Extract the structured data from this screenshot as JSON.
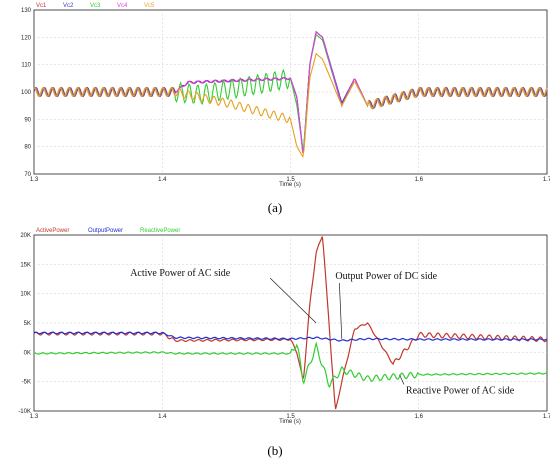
{
  "charts": [
    {
      "id": "a",
      "type": "line",
      "caption": "(a)",
      "xlabel": "Time (s)",
      "xlim": [
        1.3,
        1.7
      ],
      "ylim": [
        70,
        130
      ],
      "xticks": [
        "1.3",
        "1.4",
        "1.5",
        "1.6",
        "1.7"
      ],
      "yticks": [
        "70",
        "80",
        "90",
        "100",
        "110",
        "120",
        "130"
      ],
      "grid": true,
      "legend_position": "top-left",
      "series": [
        {
          "name": "Vc1",
          "color": "#d9262a"
        },
        {
          "name": "Vc2",
          "color": "#3b3bcc"
        },
        {
          "name": "Vc3",
          "color": "#33cc33"
        },
        {
          "name": "Vc4",
          "color": "#e040e0"
        },
        {
          "name": "Vc5",
          "color": "#e8a020"
        }
      ]
    },
    {
      "id": "b",
      "type": "line",
      "caption": "(b)",
      "xlabel": "Time (s)",
      "xlim": [
        1.3,
        1.7
      ],
      "ylim": [
        -10000,
        20000
      ],
      "xticks": [
        "1.3",
        "1.4",
        "1.5",
        "1.6",
        "1.7"
      ],
      "yticks": [
        "-10K",
        "-5K",
        "0K",
        "5K",
        "10K",
        "15K",
        "20K"
      ],
      "grid": true,
      "legend_position": "top-left",
      "series": [
        {
          "name": "ActivePower",
          "color": "#c0392b"
        },
        {
          "name": "OutputPower",
          "color": "#2030d0"
        },
        {
          "name": "ReactivePower",
          "color": "#33cc33"
        }
      ],
      "annotations": [
        {
          "text": "Active Power of AC side",
          "x": 1.375,
          "y": 13000,
          "target_x": 1.52,
          "target_y": 5000
        },
        {
          "text": "Output Power of DC side",
          "x": 1.535,
          "y": 12500,
          "target_x": 1.54,
          "target_y": 2300
        },
        {
          "text": "Reactive Power of AC side",
          "x": 1.59,
          "y": -7000,
          "target_x": 1.585,
          "target_y": -3800
        }
      ]
    }
  ],
  "chart_data": [
    {
      "type": "line",
      "title": "",
      "xlabel": "Time (s)",
      "ylabel": "",
      "xlim": [
        1.3,
        1.7
      ],
      "ylim": [
        70,
        130
      ],
      "series": [
        {
          "name": "Vc1",
          "x": [
            1.3,
            1.41,
            1.42,
            1.5,
            1.505,
            1.51,
            1.515,
            1.52,
            1.525,
            1.54,
            1.55,
            1.56,
            1.6,
            1.7
          ],
          "y": [
            100,
            100,
            103.5,
            105,
            98,
            76,
            110,
            122,
            120,
            95,
            105,
            95,
            100,
            100
          ]
        },
        {
          "name": "Vc2",
          "x": [
            1.3,
            1.41,
            1.42,
            1.5,
            1.505,
            1.51,
            1.515,
            1.52,
            1.525,
            1.54,
            1.55,
            1.56,
            1.6,
            1.7
          ],
          "y": [
            100,
            100,
            103.5,
            105,
            98,
            77,
            110,
            122,
            120,
            96,
            105,
            95,
            100,
            100
          ]
        },
        {
          "name": "Vc3",
          "x": [
            1.3,
            1.41,
            1.43,
            1.5,
            1.505,
            1.51,
            1.515,
            1.52,
            1.525,
            1.54,
            1.55,
            1.56,
            1.6,
            1.7
          ],
          "y": [
            100,
            100,
            99,
            105,
            95,
            78,
            110,
            121,
            119,
            95,
            104,
            95,
            100,
            100
          ]
        },
        {
          "name": "Vc4",
          "x": [
            1.3,
            1.41,
            1.42,
            1.5,
            1.505,
            1.51,
            1.515,
            1.52,
            1.525,
            1.54,
            1.55,
            1.56,
            1.6,
            1.7
          ],
          "y": [
            100,
            100,
            103.5,
            105,
            98,
            76,
            110,
            122,
            120,
            95,
            105,
            95,
            100,
            100
          ]
        },
        {
          "name": "Vc5",
          "x": [
            1.3,
            1.41,
            1.45,
            1.5,
            1.505,
            1.51,
            1.515,
            1.52,
            1.525,
            1.54,
            1.55,
            1.56,
            1.6,
            1.7
          ],
          "y": [
            100,
            100,
            96,
            90,
            80,
            76,
            105,
            114,
            112,
            95,
            104,
            95,
            100,
            100
          ]
        }
      ]
    },
    {
      "type": "line",
      "title": "",
      "xlabel": "Time (s)",
      "ylabel": "",
      "xlim": [
        1.3,
        1.7
      ],
      "ylim": [
        -10000,
        20000
      ],
      "series": [
        {
          "name": "ActivePower",
          "x": [
            1.3,
            1.4,
            1.41,
            1.5,
            1.505,
            1.51,
            1.515,
            1.52,
            1.525,
            1.53,
            1.535,
            1.54,
            1.55,
            1.56,
            1.58,
            1.6,
            1.7
          ],
          "y": [
            3200,
            3200,
            2000,
            2200,
            0,
            -5000,
            8000,
            17000,
            20000,
            5000,
            -10000,
            -5000,
            4000,
            5000,
            -2000,
            3000,
            2200
          ]
        },
        {
          "name": "OutputPower",
          "x": [
            1.3,
            1.4,
            1.41,
            1.5,
            1.52,
            1.54,
            1.56,
            1.6,
            1.7
          ],
          "y": [
            3300,
            3300,
            2500,
            2300,
            2500,
            2000,
            2300,
            2200,
            2200
          ]
        },
        {
          "name": "ReactivePower",
          "x": [
            1.3,
            1.4,
            1.41,
            1.5,
            1.505,
            1.51,
            1.52,
            1.53,
            1.54,
            1.56,
            1.6,
            1.7
          ],
          "y": [
            -200,
            0,
            -200,
            -200,
            1500,
            -5000,
            1000,
            -5500,
            -3000,
            -4500,
            -3800,
            -3600
          ]
        }
      ]
    }
  ]
}
